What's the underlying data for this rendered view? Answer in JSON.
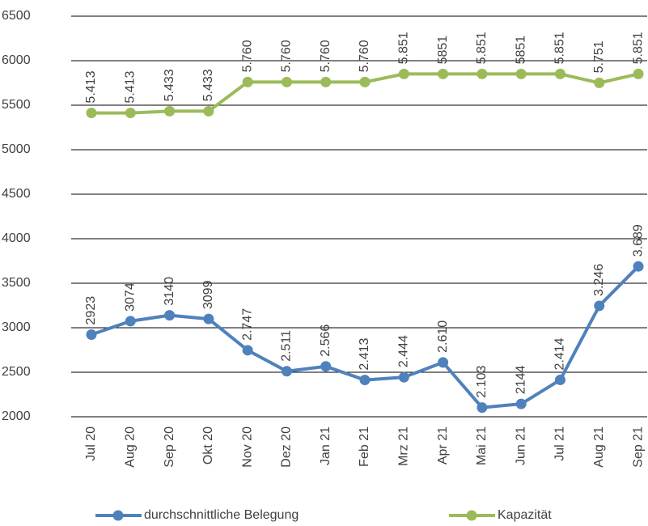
{
  "chart_data": {
    "type": "line",
    "categories": [
      "Jul 20",
      "Aug 20",
      "Sep 20",
      "Okt 20",
      "Nov 20",
      "Dez 20",
      "Jan 21",
      "Feb 21",
      "Mrz 21",
      "Apr 21",
      "Mai 21",
      "Jun 21",
      "Jul 21",
      "Aug 21",
      "Sep 21"
    ],
    "series": [
      {
        "name": "durchschnittliche Belegung",
        "color": "#4f81bd",
        "values": [
          2923,
          3074,
          3140,
          3099,
          2747,
          2511,
          2566,
          2413,
          2444,
          2610,
          2103,
          2144,
          2414,
          3246,
          3689
        ],
        "value_labels": [
          "2923",
          "3074",
          "3140",
          "3099",
          "2.747",
          "2.511",
          "2.566",
          "2.413",
          "2.444",
          "2.610",
          "2.103",
          "2144",
          "2.414",
          "3.246",
          "3.689"
        ]
      },
      {
        "name": "Kapazität",
        "color": "#9bbb59",
        "values": [
          5413,
          5413,
          5433,
          5433,
          5760,
          5760,
          5760,
          5760,
          5851,
          5851,
          5851,
          5851,
          5851,
          5751,
          5851
        ],
        "value_labels": [
          "5.413",
          "5.413",
          "5.433",
          "5.433",
          "5.760",
          "5.760",
          "5.760",
          "5.760",
          "5.851",
          "5851",
          "5.851",
          "5851",
          "5.851",
          "5.751",
          "5.851"
        ]
      }
    ],
    "ylim": [
      2000,
      6500
    ],
    "yticks": [
      2000,
      2500,
      3000,
      3500,
      4000,
      4500,
      5000,
      5500,
      6000,
      6500
    ],
    "grid": true,
    "legend": "bottom"
  }
}
